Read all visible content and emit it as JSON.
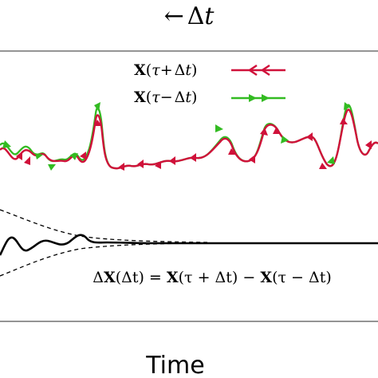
{
  "top_label": {
    "arrow": "←",
    "delta": "Δ",
    "var": "t"
  },
  "legend": {
    "forward": {
      "bold": "X",
      "open": "(",
      "tau": "τ",
      "sign": "+",
      "delta": "Δ",
      "var": "t",
      "close": ")",
      "color": "#d0113a"
    },
    "backward": {
      "bold": "X",
      "open": "(",
      "tau": "τ",
      "sign": "−",
      "delta": "Δ",
      "var": "t",
      "close": ")",
      "color": "#33bb22"
    }
  },
  "equation": {
    "lhs_delta": "Δ",
    "lhs_bold": "X",
    "lhs_args": "(Δt) = ",
    "t1_bold": "X",
    "t1_args": "(τ + Δt) − ",
    "t2_bold": "X",
    "t2_args": "(τ − Δt)"
  },
  "xlabel": "Time",
  "colors": {
    "forward": "#d0113a",
    "backward": "#33bb22",
    "axes": "#555555",
    "difference": "#000000"
  }
}
